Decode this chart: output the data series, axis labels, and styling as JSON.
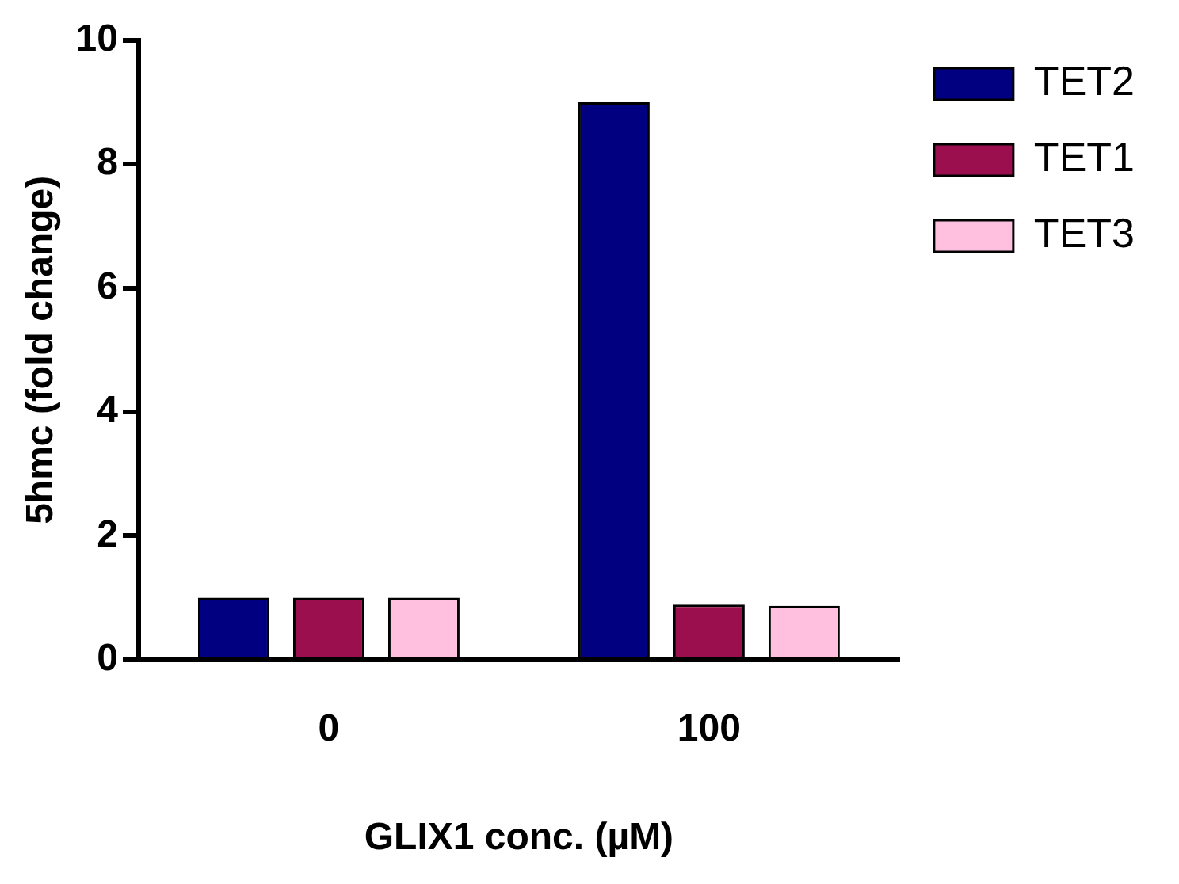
{
  "chart_data": {
    "type": "bar",
    "xlabel": "GLIX1 conc. (µM)",
    "ylabel": "5hmc (fold change)",
    "categories": [
      "0",
      "100"
    ],
    "series": [
      {
        "name": "TET2",
        "color": "#000080",
        "values": [
          1.0,
          9.0
        ]
      },
      {
        "name": "TET1",
        "color": "#9b0f4f",
        "values": [
          1.0,
          0.89
        ]
      },
      {
        "name": "TET3",
        "color": "#ffc0e0",
        "values": [
          1.0,
          0.87
        ]
      }
    ],
    "ylim": [
      0,
      10
    ],
    "yticks": [
      0,
      2,
      4,
      6,
      8,
      10
    ],
    "grid": false,
    "legend": "top right"
  }
}
